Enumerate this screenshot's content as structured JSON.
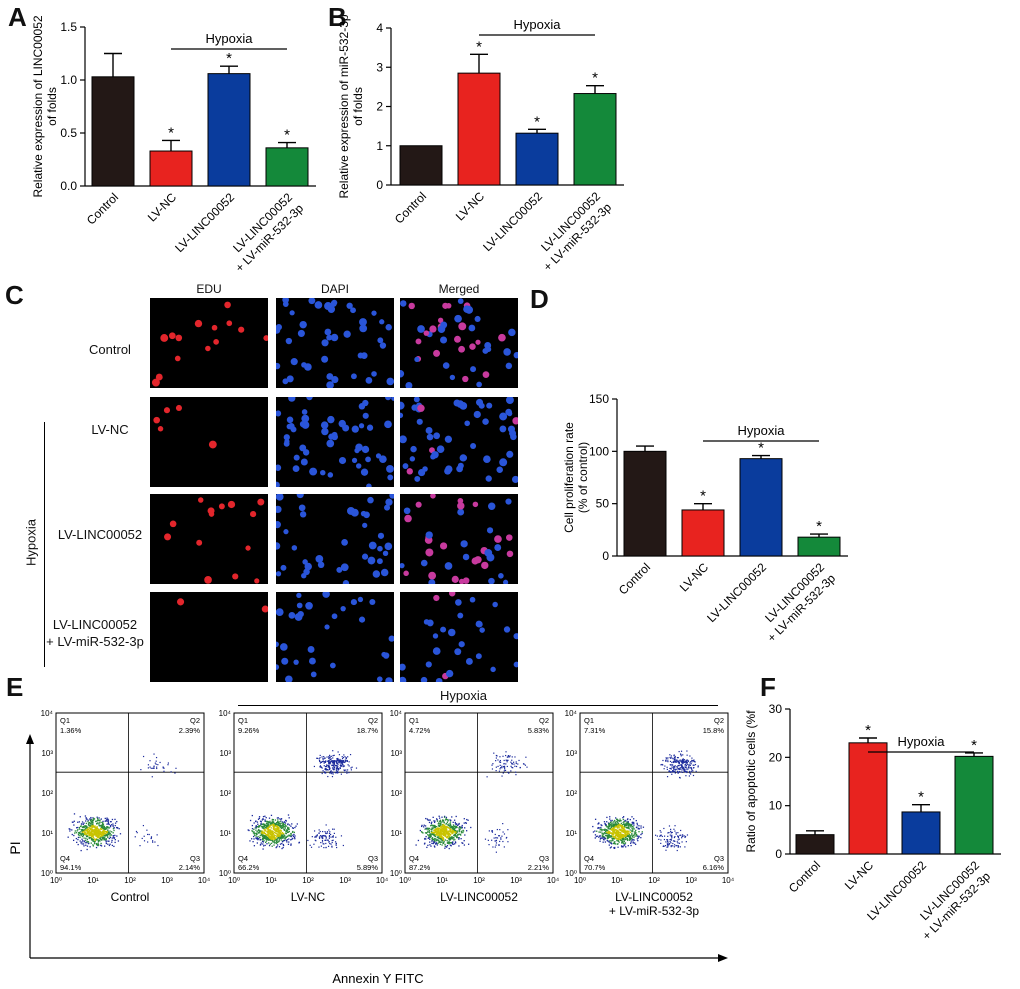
{
  "panels": {
    "A": "A",
    "B": "B",
    "C": "C",
    "D": "D",
    "E": "E",
    "F": "F"
  },
  "colors": {
    "control": "#231816",
    "lvnc": "#e8231f",
    "lvlinc": "#0a3c9d",
    "combo": "#14893a"
  },
  "panel_c": {
    "columns": [
      "EDU",
      "DAPI",
      "Merged"
    ],
    "rows": [
      "Control",
      "LV-NC",
      "LV-LINC00052",
      "LV-LINC00052\n+ LV-miR-532-3p"
    ],
    "hypoxia_label": "Hypoxia"
  },
  "panel_e": {
    "hypoxia_label": "Hypoxia",
    "x_axis_label": "Annexin Y FITC",
    "y_axis_label": "PI",
    "plots": [
      {
        "label": "Control",
        "q1": "1.36%",
        "q2": "2.39%",
        "q3": "2.14%",
        "q4": "94.1%"
      },
      {
        "label": "LV-NC",
        "q1": "9.26%",
        "q2": "18.7%",
        "q3": "5.89%",
        "q4": "66.2%"
      },
      {
        "label": "LV-LINC00052",
        "q1": "4.72%",
        "q2": "5.83%",
        "q3": "2.21%",
        "q4": "87.2%"
      },
      {
        "label": "LV-LINC00052\n+ LV-miR-532-3p",
        "q1": "7.31%",
        "q2": "15.8%",
        "q3": "6.16%",
        "q4": "70.7%"
      }
    ],
    "quadrant_names": [
      "Q1",
      "Q2",
      "Q3",
      "Q4"
    ],
    "tick_labels": [
      "10⁰",
      "10¹",
      "10²",
      "10³",
      "10⁴"
    ]
  },
  "chart_data": [
    {
      "id": "A",
      "type": "bar",
      "categories": [
        "Control",
        "LV-NC",
        "LV-LINC00052",
        "LV-LINC00052\n+ LV-miR-532-3p"
      ],
      "values": [
        1.03,
        0.33,
        1.06,
        0.36
      ],
      "errors": [
        0.22,
        0.1,
        0.07,
        0.05
      ],
      "significance": [
        "",
        "*",
        "*",
        "*"
      ],
      "ylabel": "Relative expression of LINC00052\nof folds",
      "ylim": [
        0,
        1.5
      ],
      "yticks": [
        "0.0",
        "0.5",
        "1.0",
        "1.5"
      ],
      "bracket_label": "Hypoxia"
    },
    {
      "id": "B",
      "type": "bar",
      "categories": [
        "Control",
        "LV-NC",
        "LV-LINC00052",
        "LV-LINC00052\n+ LV-miR-532-3p"
      ],
      "values": [
        1.0,
        2.85,
        1.32,
        2.33
      ],
      "errors": [
        0.0,
        0.48,
        0.1,
        0.2
      ],
      "significance": [
        "",
        "*",
        "*",
        "*"
      ],
      "ylabel": "Relative expression of miR-532-3p\nof folds",
      "ylim": [
        0,
        4
      ],
      "yticks": [
        "0",
        "1",
        "2",
        "3",
        "4"
      ],
      "bracket_label": "Hypoxia"
    },
    {
      "id": "D",
      "type": "bar",
      "categories": [
        "Control",
        "LV-NC",
        "LV-LINC00052",
        "LV-LINC00052\n+ LV-miR-532-3p"
      ],
      "values": [
        100,
        44,
        93,
        18
      ],
      "errors": [
        5,
        6,
        3,
        3
      ],
      "significance": [
        "",
        "*",
        "*",
        "*"
      ],
      "ylabel": "Cell proliferation rate\n(% of control)",
      "ylim": [
        0,
        150
      ],
      "yticks": [
        "0",
        "50",
        "100",
        "150"
      ],
      "bracket_label": "Hypoxia"
    },
    {
      "id": "F",
      "type": "bar",
      "categories": [
        "Control",
        "LV-NC",
        "LV-LINC00052",
        "LV-LINC00052\n+ LV-miR-532-3p"
      ],
      "values": [
        4.0,
        23.0,
        8.7,
        20.2
      ],
      "errors": [
        0.8,
        1.0,
        1.5,
        0.7
      ],
      "significance": [
        "",
        "*",
        "*",
        "*"
      ],
      "ylabel": "Ratio of apoptotic cells (%f",
      "ylim": [
        0,
        30
      ],
      "yticks": [
        "0",
        "10",
        "20",
        "30"
      ],
      "bracket_label": "Hypoxia"
    }
  ]
}
